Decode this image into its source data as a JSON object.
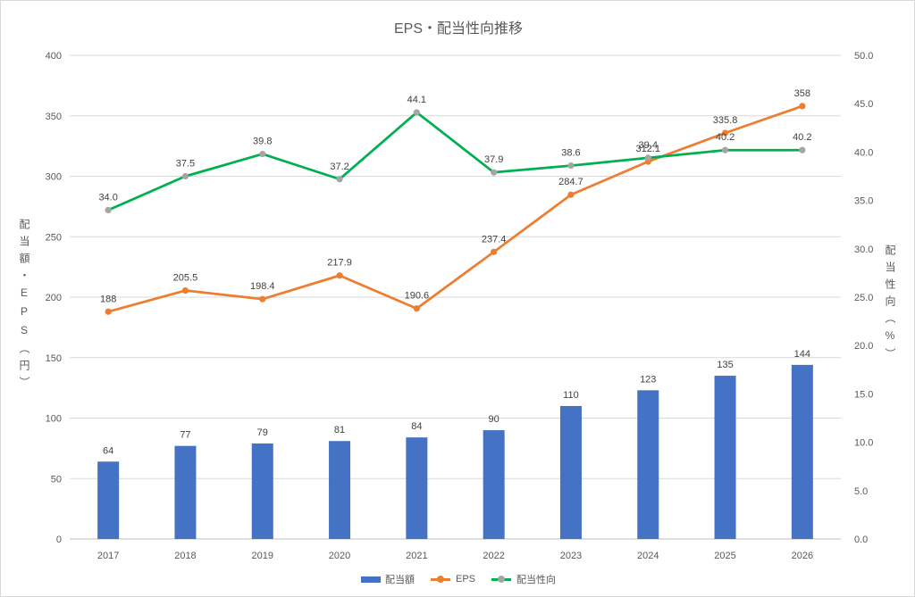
{
  "chart_data": {
    "type": "bar",
    "title": "EPS・配当性向推移",
    "categories": [
      "2017",
      "2018",
      "2019",
      "2020",
      "2021",
      "2022",
      "2023",
      "2024",
      "2025",
      "2026"
    ],
    "series": [
      {
        "name": "配当額",
        "type": "bar",
        "axis": "left",
        "color": "#4472C4",
        "values": [
          64,
          77,
          79,
          81,
          84,
          90,
          110,
          123,
          135,
          144
        ],
        "data_labels": [
          "64",
          "77",
          "79",
          "81",
          "84",
          "90",
          "110",
          "123",
          "135",
          "144"
        ]
      },
      {
        "name": "EPS",
        "type": "line",
        "axis": "left",
        "color": "#ED7D31",
        "marker_color": "#ED7D31",
        "values": [
          188,
          205.5,
          198.4,
          217.9,
          190.6,
          237.4,
          284.7,
          312.1,
          335.8,
          358
        ],
        "data_labels": [
          "188",
          "205.5",
          "198.4",
          "217.9",
          "190.6",
          "237.4",
          "284.7",
          "312.1",
          "335.8",
          "358"
        ]
      },
      {
        "name": "配当性向",
        "type": "line",
        "axis": "right",
        "color": "#00B050",
        "marker_color": "#A5A5A5",
        "values": [
          34.0,
          37.5,
          39.8,
          37.2,
          44.1,
          37.9,
          38.6,
          39.4,
          40.2,
          40.2
        ],
        "data_labels": [
          "34.0",
          "37.5",
          "39.8",
          "37.2",
          "44.1",
          "37.9",
          "38.6",
          "39.4",
          "40.2",
          "40.2"
        ]
      }
    ],
    "y_left": {
      "label": "配当額・EPS（円）",
      "range": [
        0,
        400
      ],
      "ticks": [
        "0",
        "50",
        "100",
        "150",
        "200",
        "250",
        "300",
        "350",
        "400"
      ]
    },
    "y_right": {
      "label": "配当性向（%）",
      "range": [
        0,
        50
      ],
      "ticks": [
        "0.0",
        "5.0",
        "10.0",
        "15.0",
        "20.0",
        "25.0",
        "30.0",
        "35.0",
        "40.0",
        "45.0",
        "50.0"
      ]
    },
    "grid": true,
    "legend": "bottom"
  }
}
